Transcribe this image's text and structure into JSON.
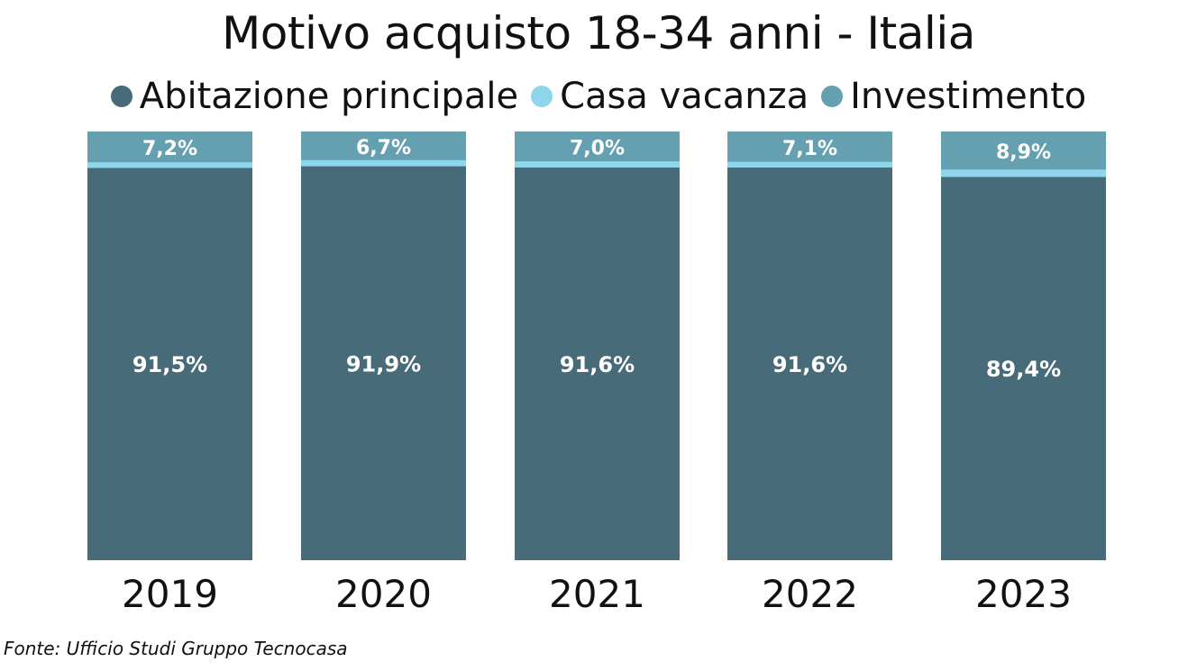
{
  "chart_data": {
    "type": "bar",
    "stacked": true,
    "title": "Motivo acquisto 18-34 anni - Italia",
    "categories": [
      "2019",
      "2020",
      "2021",
      "2022",
      "2023"
    ],
    "series": [
      {
        "name": "Abitazione principale",
        "color": "#476b78",
        "values": [
          91.5,
          91.9,
          91.6,
          91.6,
          89.4
        ],
        "labels": [
          "91,5%",
          "91,9%",
          "91,6%",
          "91,6%",
          "89,4%"
        ]
      },
      {
        "name": "Casa vacanza",
        "color": "#8dd6ec",
        "values": [
          1.3,
          1.4,
          1.4,
          1.3,
          1.7
        ],
        "labels": [
          "",
          "",
          "",
          "",
          ""
        ]
      },
      {
        "name": "Investimento",
        "color": "#65a0b0",
        "values": [
          7.2,
          6.7,
          7.0,
          7.1,
          8.9
        ],
        "labels": [
          "7,2%",
          "6,7%",
          "7,0%",
          "7,1%",
          "8,9%"
        ]
      }
    ],
    "ylim": [
      0,
      100
    ],
    "legend_position": "top",
    "grid": false
  },
  "source": "Fonte: Ufficio Studi Gruppo Tecnocasa"
}
